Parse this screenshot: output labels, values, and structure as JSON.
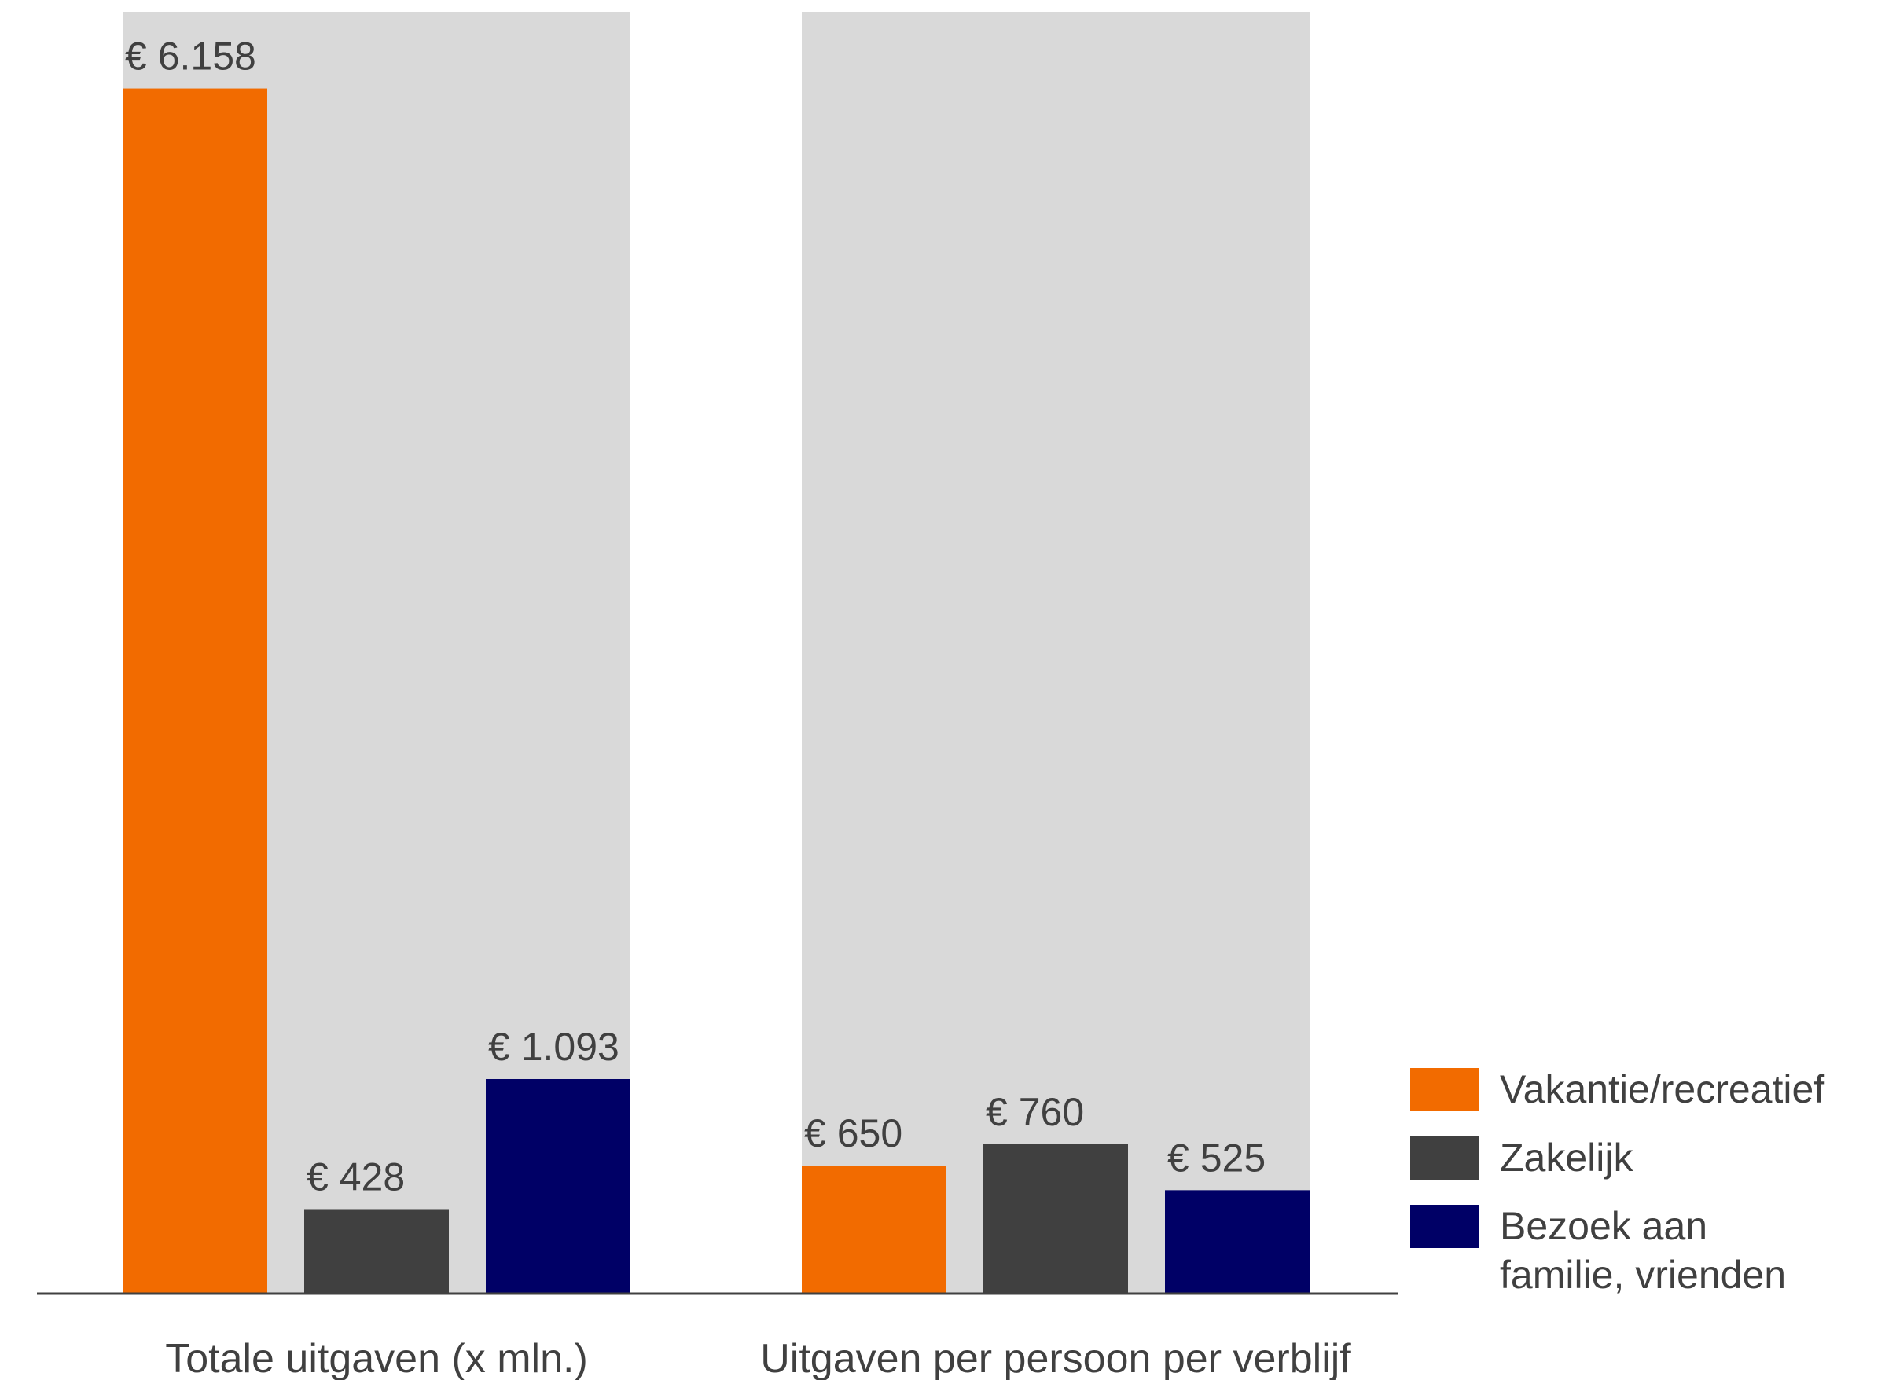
{
  "chart_data": {
    "type": "bar",
    "title": "",
    "xlabel": "",
    "ylabel": "",
    "categories": [
      "Totale uitgaven (x mln.)",
      "Uitgaven per persoon per verblijf"
    ],
    "series": [
      {
        "name": "Vakantie/recreatief",
        "color": "#f26b00",
        "values": [
          6158,
          650
        ],
        "labels": [
          "€ 6.158",
          "€ 650"
        ]
      },
      {
        "name": "Zakelijk",
        "color": "#404040",
        "values": [
          428,
          760
        ],
        "labels": [
          "€ 428",
          "€ 760"
        ]
      },
      {
        "name": "Bezoek aan familie, vrienden",
        "name_lines": [
          "Bezoek aan",
          "familie, vrienden"
        ],
        "color": "#000066",
        "values": [
          1093,
          525
        ],
        "labels": [
          "€ 1.093",
          "€ 525"
        ]
      }
    ],
    "ylim": [
      0,
      6550
    ],
    "grid": false,
    "legend": "bottom-right",
    "background_color": "#d9d9d9",
    "axis_color": "#404040"
  }
}
